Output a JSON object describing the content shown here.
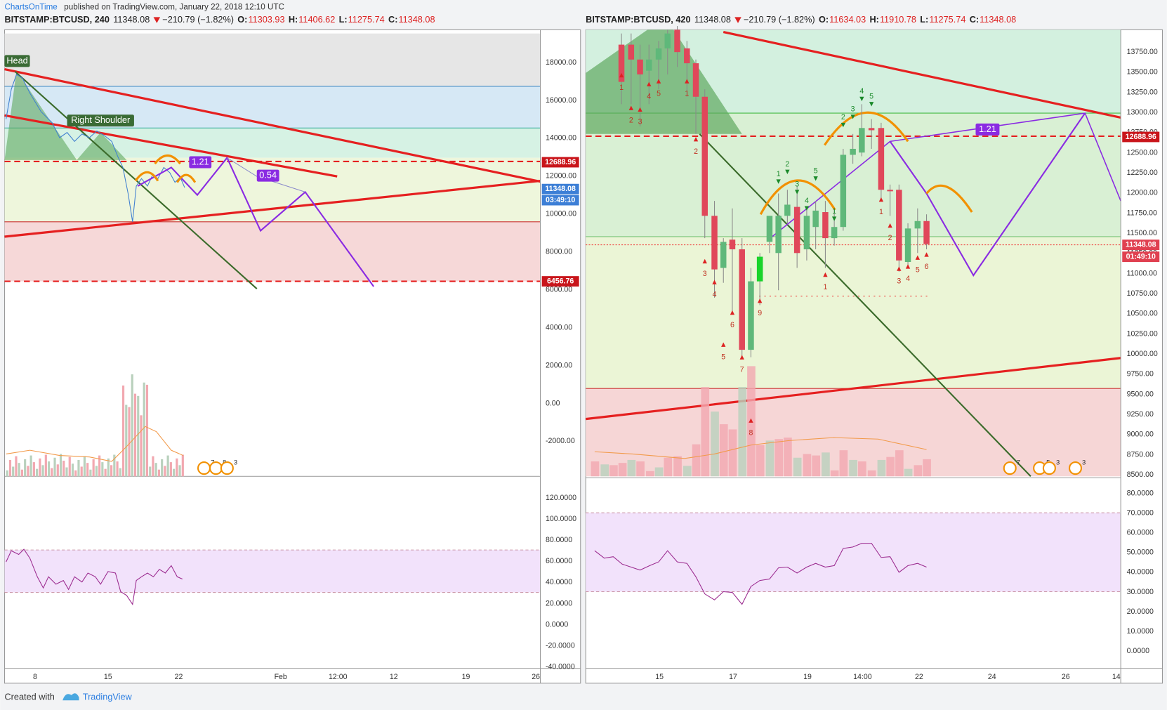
{
  "header": {
    "author": "ChartsOnTime",
    "published": "published on TradingView.com, January 22, 2018 12:10 UTC"
  },
  "left": {
    "symbol": "BITSTAMP:BTCUSD, 240",
    "last": "11348.08",
    "change": "−210.79 (−1.82%)",
    "o_label": "O:",
    "open": "11303.93",
    "h_label": "H:",
    "high": "11406.62",
    "l_label": "L:",
    "low": "11275.74",
    "c_label": "C:",
    "close": "11348.08",
    "price_ticks": [
      "18000.00",
      "16000.00",
      "14000.00",
      "12000.00",
      "10000.00",
      "8000.00",
      "6000.00",
      "4000.00",
      "2000.00",
      "0.00",
      "-2000.00"
    ],
    "price_tags": [
      "12688.96",
      "11348.08",
      "03:49:10",
      "6456.76"
    ],
    "annotations": [
      "Head",
      "Right Shoulder",
      "1.21",
      "0.54"
    ],
    "rsi_ticks": [
      "120.0000",
      "100.0000",
      "80.0000",
      "60.0000",
      "40.0000",
      "20.0000",
      "0.0000",
      "-20.0000",
      "-40.0000"
    ],
    "time_ticks": [
      "8",
      "15",
      "22",
      "Feb",
      "12:00",
      "12",
      "19",
      "26"
    ],
    "event_badges": [
      "7",
      "8",
      "3"
    ]
  },
  "right": {
    "symbol": "BITSTAMP:BTCUSD, 420",
    "last": "11348.08",
    "change": "−210.79 (−1.82%)",
    "o_label": "O:",
    "open": "11634.03",
    "h_label": "H:",
    "high": "11910.78",
    "l_label": "L:",
    "low": "11275.74",
    "c_label": "C:",
    "close": "11348.08",
    "price_ticks": [
      "13750.00",
      "13500.00",
      "13250.00",
      "13000.00",
      "12750.00",
      "12500.00",
      "12250.00",
      "12000.00",
      "11750.00",
      "11500.00",
      "11250.00",
      "11000.00",
      "10750.00",
      "10500.00",
      "10250.00",
      "10000.00",
      "9750.00",
      "9500.00",
      "9250.00",
      "9000.00",
      "8750.00",
      "8500.00"
    ],
    "price_tags": [
      "12688.96",
      "11348.08",
      "01:49:10"
    ],
    "annotations": [
      "1.21"
    ],
    "rsi_ticks": [
      "80.0000",
      "70.0000",
      "60.0000",
      "50.0000",
      "40.0000",
      "30.0000",
      "20.0000",
      "10.0000",
      "0.0000"
    ],
    "time_ticks": [
      "15",
      "17",
      "19",
      "14:00",
      "22",
      "24",
      "26",
      "14"
    ],
    "event_badges": [
      "7",
      "5",
      "3",
      "3"
    ],
    "sell_counts": [
      "1",
      "2",
      "3",
      "4",
      "5",
      "1",
      "2",
      "3",
      "4",
      "5",
      "6",
      "7",
      "8",
      "9",
      "1",
      "1",
      "2",
      "3",
      "4",
      "5",
      "6"
    ],
    "buy_counts": [
      "1",
      "2",
      "3",
      "4",
      "5",
      "1",
      "2",
      "3",
      "4",
      "5"
    ]
  },
  "footer": {
    "created": "Created with",
    "brand": "TradingView"
  }
}
